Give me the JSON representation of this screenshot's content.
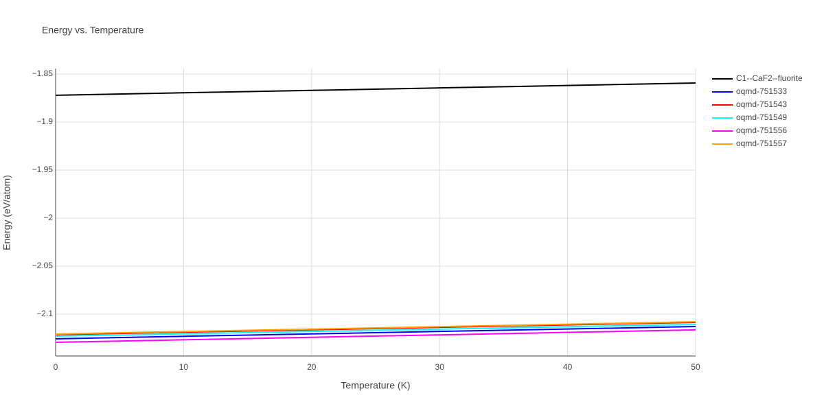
{
  "chart_data": {
    "type": "line",
    "title": "Energy vs. Temperature",
    "x_label": "Temperature (K)",
    "y_label": "Energy (eV/atom)",
    "x": [
      0,
      10,
      20,
      30,
      40,
      50
    ],
    "series": [
      {
        "name": "C1--CaF2--fluorite",
        "color": "#000000",
        "values": [
          -1.8721,
          -1.8695,
          -1.867,
          -1.8644,
          -1.8619,
          -1.8593
        ]
      },
      {
        "name": "oqmd-751533",
        "color": "#0000ff",
        "values": [
          -2.1257,
          -2.1231,
          -2.1206,
          -2.118,
          -2.1155,
          -2.1129
        ]
      },
      {
        "name": "oqmd-751543",
        "color": "#ff0000",
        "values": [
          -2.1214,
          -2.1188,
          -2.1163,
          -2.1137,
          -2.1112,
          -2.1086
        ]
      },
      {
        "name": "oqmd-751549",
        "color": "#00ffff",
        "values": [
          -2.1229,
          -2.1205,
          -2.118,
          -2.1156,
          -2.1131,
          -2.1107
        ]
      },
      {
        "name": "oqmd-751556",
        "color": "#ff00ff",
        "values": [
          -2.1293,
          -2.1267,
          -2.1241,
          -2.1216,
          -2.119,
          -2.1164
        ]
      },
      {
        "name": "oqmd-751557",
        "color": "#ffa500",
        "values": [
          -2.1207,
          -2.1181,
          -2.1156,
          -2.113,
          -2.1105,
          -2.1079
        ]
      }
    ],
    "xlim": [
      0,
      50
    ],
    "xticks": [
      0,
      10,
      20,
      30,
      40,
      50
    ],
    "ylim": [
      -2.1436,
      -1.8443
    ],
    "yticks": [
      {
        "value": -2.1,
        "label": "−2.1"
      },
      {
        "value": -2.05,
        "label": "−2.05"
      },
      {
        "value": -2,
        "label": "−2"
      },
      {
        "value": -1.95,
        "label": "−1.95"
      },
      {
        "value": -1.9,
        "label": "−1.9"
      },
      {
        "value": -1.85,
        "label": "−1.85"
      }
    ],
    "grid": true,
    "legend": "right"
  }
}
